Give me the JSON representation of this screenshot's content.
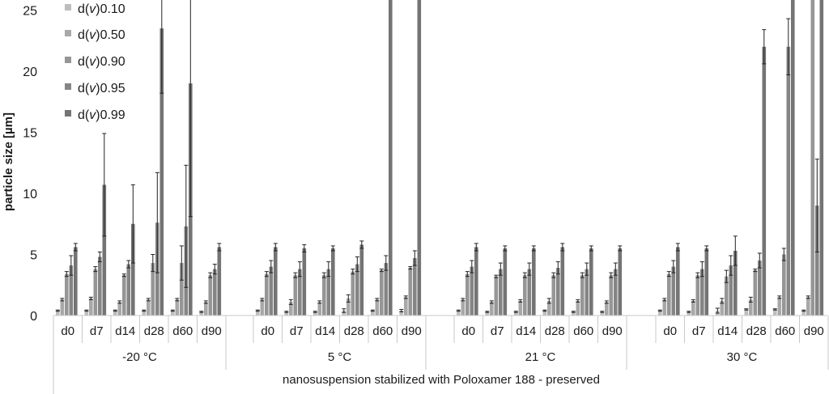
{
  "chart_data": {
    "type": "bar",
    "ylabel": "particle size [µm]",
    "xlabel": "nanosuspension stabilized with Poloxamer 188 - preserved",
    "ylim": [
      0,
      25
    ],
    "yticks": [
      "0",
      "5",
      "10",
      "15",
      "20",
      "25"
    ],
    "grid": false,
    "legend_position": "top-left",
    "colors": [
      "#bdbdbd",
      "#a8a8a8",
      "#969696",
      "#858585",
      "#747474"
    ],
    "series": [
      {
        "prefix": "d(",
        "var": "v",
        "suffix": ")0.10"
      },
      {
        "prefix": "d(",
        "var": "v",
        "suffix": ")0.50"
      },
      {
        "prefix": "d(",
        "var": "v",
        "suffix": ")0.90"
      },
      {
        "prefix": "d(",
        "var": "v",
        "suffix": ")0.95"
      },
      {
        "prefix": "d(",
        "var": "v",
        "suffix": ")0.99"
      }
    ],
    "groups": [
      {
        "label": "-20 °C",
        "days": [
          {
            "label": "d0",
            "values": [
              0.4,
              1.3,
              3.4,
              4.1,
              5.6
            ],
            "errors": [
              0.05,
              0.1,
              0.2,
              0.8,
              0.3
            ]
          },
          {
            "label": "d7",
            "values": [
              0.4,
              1.4,
              3.8,
              4.8,
              10.7
            ],
            "errors": [
              0.05,
              0.1,
              0.2,
              0.4,
              4.2
            ]
          },
          {
            "label": "d14",
            "values": [
              0.4,
              1.1,
              3.3,
              4.2,
              7.5
            ],
            "errors": [
              0.05,
              0.1,
              0.1,
              0.3,
              3.2
            ]
          },
          {
            "label": "d28",
            "values": [
              0.4,
              1.3,
              4.3,
              7.6,
              23.5
            ],
            "errors": [
              0.05,
              0.1,
              0.7,
              4.1,
              5.3
            ]
          },
          {
            "label": "d60",
            "values": [
              0.4,
              1.3,
              4.3,
              7.3,
              19.0
            ],
            "errors": [
              0.05,
              0.1,
              1.4,
              5.0,
              10.9
            ]
          },
          {
            "label": "d90",
            "values": [
              0.3,
              1.1,
              3.3,
              3.8,
              5.6
            ],
            "errors": [
              0.05,
              0.1,
              0.2,
              0.4,
              0.3
            ]
          }
        ]
      },
      {
        "label": "5 °C",
        "days": [
          {
            "label": "d0",
            "values": [
              0.4,
              1.3,
              3.4,
              4.0,
              5.6
            ],
            "errors": [
              0.05,
              0.1,
              0.2,
              0.5,
              0.3
            ]
          },
          {
            "label": "d7",
            "values": [
              0.3,
              1.1,
              3.3,
              3.8,
              5.5
            ],
            "errors": [
              0.05,
              0.2,
              0.2,
              0.6,
              0.3
            ]
          },
          {
            "label": "d14",
            "values": [
              0.3,
              1.1,
              3.3,
              3.8,
              5.5
            ],
            "errors": [
              0.05,
              0.1,
              0.2,
              0.6,
              0.2
            ]
          },
          {
            "label": "d28",
            "values": [
              0.4,
              1.4,
              3.6,
              4.2,
              5.8
            ],
            "errors": [
              0.15,
              0.3,
              0.2,
              0.6,
              0.3
            ]
          },
          {
            "label": "d60",
            "values": [
              0.4,
              1.3,
              3.7,
              4.3,
              30
            ],
            "errors": [
              0.05,
              0.1,
              0.1,
              0.6,
              0
            ]
          },
          {
            "label": "d90",
            "values": [
              0.4,
              1.5,
              3.9,
              4.7,
              30
            ],
            "errors": [
              0.1,
              0.1,
              0.1,
              0.6,
              0
            ]
          }
        ]
      },
      {
        "label": "21 °C",
        "days": [
          {
            "label": "d0",
            "values": [
              0.4,
              1.3,
              3.4,
              4.0,
              5.6
            ],
            "errors": [
              0.05,
              0.1,
              0.2,
              0.5,
              0.3
            ]
          },
          {
            "label": "d7",
            "values": [
              0.3,
              1.1,
              3.2,
              3.8,
              5.5
            ],
            "errors": [
              0.05,
              0.1,
              0.1,
              0.5,
              0.2
            ]
          },
          {
            "label": "d14",
            "values": [
              0.3,
              1.2,
              3.3,
              3.8,
              5.5
            ],
            "errors": [
              0.05,
              0.1,
              0.2,
              0.5,
              0.2
            ]
          },
          {
            "label": "d28",
            "values": [
              0.4,
              1.2,
              3.3,
              3.9,
              5.6
            ],
            "errors": [
              0.05,
              0.2,
              0.2,
              0.5,
              0.3
            ]
          },
          {
            "label": "d60",
            "values": [
              0.3,
              1.2,
              3.3,
              3.8,
              5.5
            ],
            "errors": [
              0.05,
              0.1,
              0.2,
              0.5,
              0.2
            ]
          },
          {
            "label": "d90",
            "values": [
              0.3,
              1.1,
              3.3,
              3.8,
              5.5
            ],
            "errors": [
              0.05,
              0.1,
              0.2,
              0.5,
              0.2
            ]
          }
        ]
      },
      {
        "label": "30 °C",
        "days": [
          {
            "label": "d0",
            "values": [
              0.4,
              1.3,
              3.4,
              4.0,
              5.6
            ],
            "errors": [
              0.05,
              0.1,
              0.2,
              0.5,
              0.3
            ]
          },
          {
            "label": "d7",
            "values": [
              0.3,
              1.2,
              3.3,
              3.8,
              5.5
            ],
            "errors": [
              0.05,
              0.1,
              0.2,
              0.6,
              0.2
            ]
          },
          {
            "label": "d14",
            "values": [
              0.4,
              1.2,
              3.2,
              4.1,
              5.3
            ],
            "errors": [
              0.2,
              0.2,
              0.5,
              0.8,
              1.2
            ]
          },
          {
            "label": "d28",
            "values": [
              0.5,
              1.3,
              3.7,
              4.5,
              22.0
            ],
            "errors": [
              0.05,
              0.2,
              0.1,
              0.6,
              1.4
            ]
          },
          {
            "label": "d60",
            "values": [
              0.5,
              1.5,
              5.0,
              22.0,
              30
            ],
            "errors": [
              0.05,
              0.1,
              0.5,
              2.3,
              0
            ]
          },
          {
            "label": "d90",
            "values": [
              0.4,
              1.5,
              30,
              9.0,
              30
            ],
            "errors": [
              0.05,
              0.1,
              0,
              3.8,
              0
            ]
          }
        ]
      }
    ]
  }
}
